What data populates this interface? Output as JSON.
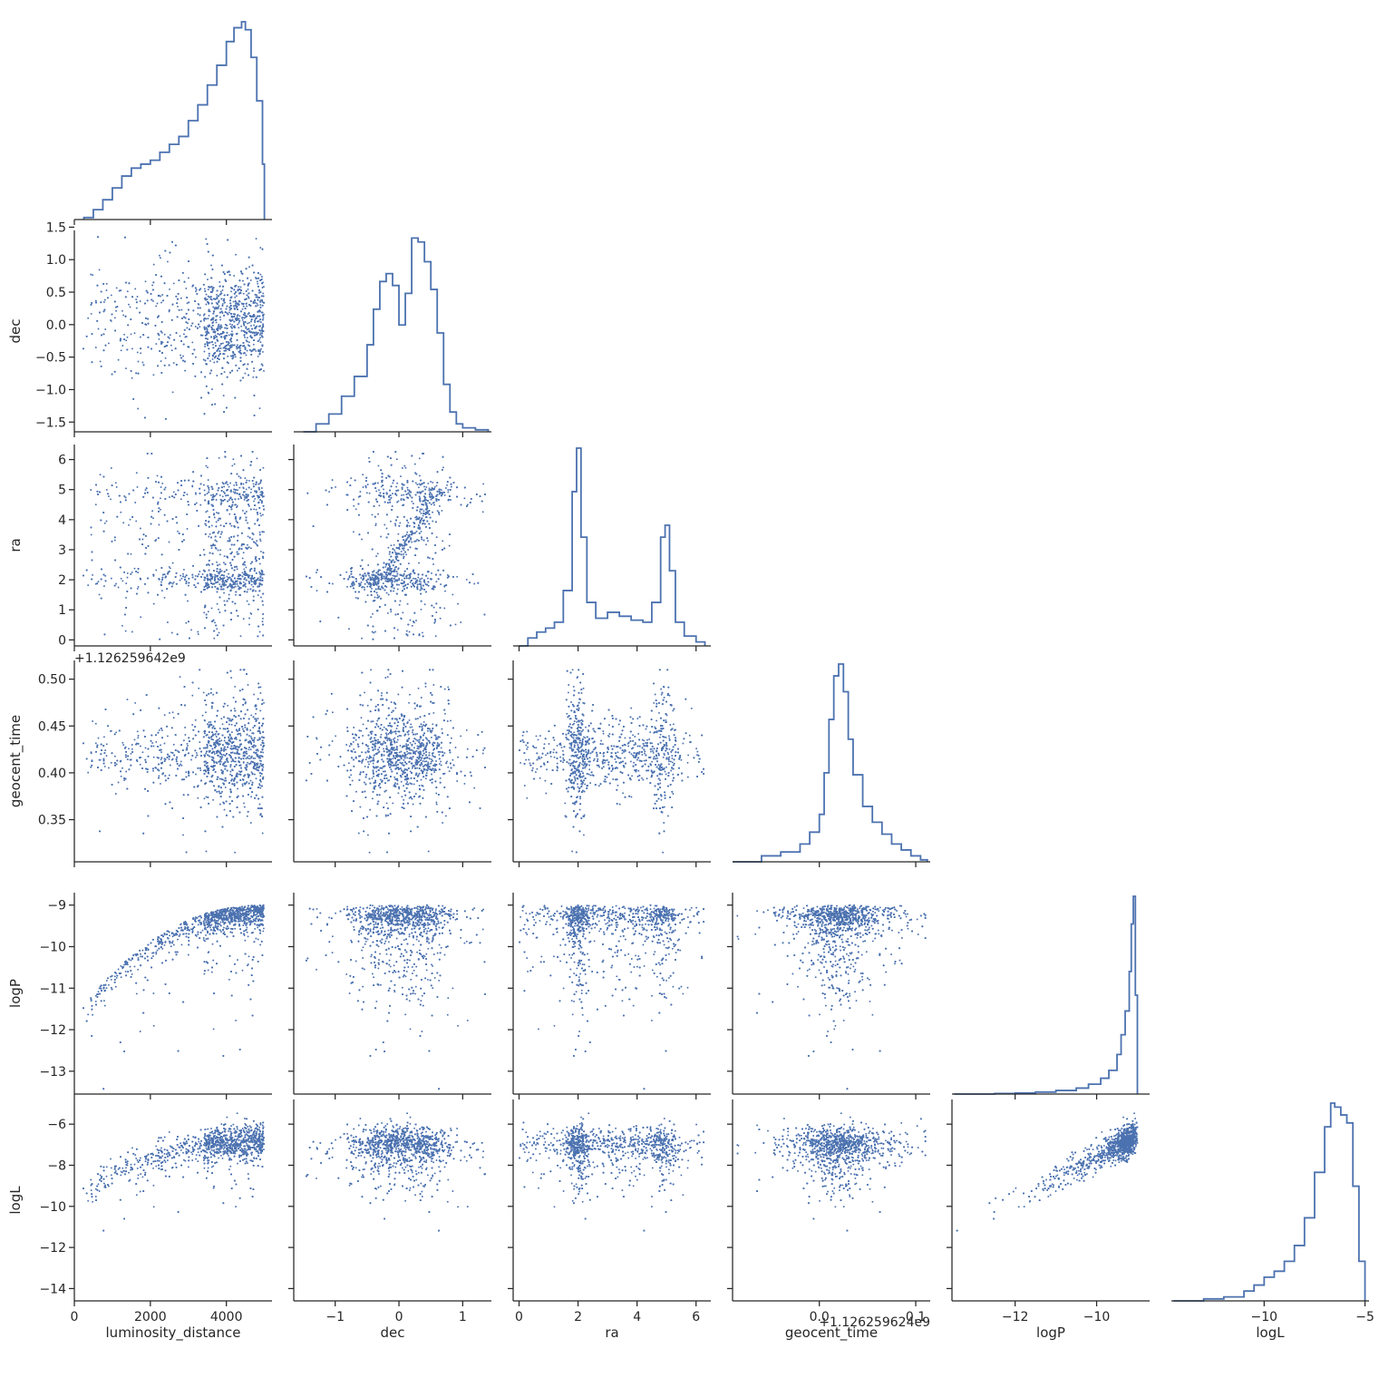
{
  "chart_data": {
    "type": "scatter",
    "layout": "corner pair plot",
    "variables": [
      "luminosity_distance",
      "dec",
      "ra",
      "geocent_time",
      "logP",
      "logL"
    ],
    "xlabels": [
      "luminosity_distance",
      "dec",
      "ra",
      "geocent_time",
      "logP",
      "logL"
    ],
    "ylabels": [
      "",
      "dec",
      "ra",
      "geocent_time",
      "logP",
      "logL"
    ],
    "offset_texts": {
      "geocent_time_y": "+1.126259642e9",
      "geocent_time_x": "+1.126259624e9"
    },
    "color": "#4c72b0",
    "ranges": {
      "luminosity_distance": [
        0,
        5200
      ],
      "dec": [
        -1.65,
        1.45
      ],
      "ra": [
        -0.2,
        6.5
      ],
      "geocent_time": [
        0.305,
        0.52
      ],
      "geocent_time_x": [
        -0.09,
        0.115
      ],
      "logP": [
        -13.55,
        -8.7
      ],
      "logL": [
        -14.6,
        -4.8
      ]
    },
    "ticks": {
      "luminosity_distance": {
        "values": [
          0,
          2000,
          4000
        ],
        "labels": [
          "0",
          "2000",
          "4000"
        ]
      },
      "dec": {
        "values": [
          -1,
          0,
          1
        ],
        "labels": [
          "−1",
          "0",
          "1"
        ]
      },
      "dec_y": {
        "values": [
          -1.5,
          -1.0,
          -0.5,
          0.0,
          0.5,
          1.0,
          1.5
        ],
        "labels": [
          "−1.5",
          "−1.0",
          "−0.5",
          "0.0",
          "0.5",
          "1.0",
          "1.5"
        ]
      },
      "ra": {
        "values": [
          0,
          2,
          4,
          6
        ],
        "labels": [
          "0",
          "2",
          "4",
          "6"
        ]
      },
      "ra_y": {
        "values": [
          0,
          1,
          2,
          3,
          4,
          5,
          6
        ],
        "labels": [
          "0",
          "1",
          "2",
          "3",
          "4",
          "5",
          "6"
        ]
      },
      "geocent_time_y": {
        "values": [
          0.35,
          0.4,
          0.45,
          0.5
        ],
        "labels": [
          "0.35",
          "0.40",
          "0.45",
          "0.50"
        ]
      },
      "geocent_time_x": {
        "values": [
          0.0,
          0.1
        ],
        "labels": [
          "0.0",
          "0.1"
        ]
      },
      "logP": {
        "values": [
          -12,
          -10
        ],
        "labels": [
          "−12",
          "−10"
        ]
      },
      "logP_y": {
        "values": [
          -13,
          -12,
          -11,
          -10,
          -9
        ],
        "labels": [
          "−13",
          "−12",
          "−11",
          "−10",
          "−9"
        ]
      },
      "logL": {
        "values": [
          -10,
          -5
        ],
        "labels": [
          "−10",
          "−5"
        ]
      },
      "logL_y": {
        "values": [
          -14,
          -12,
          -10,
          -8,
          -6
        ],
        "labels": [
          "−14",
          "−12",
          "−10",
          "−8",
          "−6"
        ]
      }
    },
    "histograms": {
      "luminosity_distance": {
        "x": [
          250,
          500,
          750,
          1000,
          1250,
          1500,
          1750,
          2000,
          2250,
          2500,
          2750,
          3000,
          3250,
          3500,
          3750,
          4000,
          4200,
          4400,
          4500,
          4650,
          4800,
          4950,
          5000
        ],
        "y": [
          0.01,
          0.05,
          0.1,
          0.16,
          0.22,
          0.26,
          0.28,
          0.3,
          0.34,
          0.38,
          0.42,
          0.5,
          0.58,
          0.68,
          0.78,
          0.9,
          0.97,
          1.0,
          0.96,
          0.82,
          0.6,
          0.28,
          0.0
        ]
      },
      "dec": {
        "x": [
          -1.5,
          -1.3,
          -1.1,
          -0.9,
          -0.7,
          -0.5,
          -0.4,
          -0.3,
          -0.2,
          -0.1,
          0.0,
          0.1,
          0.2,
          0.3,
          0.4,
          0.5,
          0.6,
          0.7,
          0.8,
          0.9,
          1.0,
          1.2,
          1.4
        ],
        "y": [
          0.0,
          0.04,
          0.09,
          0.18,
          0.28,
          0.44,
          0.62,
          0.76,
          0.8,
          0.74,
          0.54,
          0.7,
          0.98,
          0.96,
          0.86,
          0.72,
          0.5,
          0.24,
          0.1,
          0.04,
          0.02,
          0.01,
          0.0
        ]
      },
      "ra": {
        "x": [
          0.0,
          0.3,
          0.6,
          0.9,
          1.2,
          1.5,
          1.8,
          1.95,
          2.1,
          2.3,
          2.6,
          3.0,
          3.4,
          3.8,
          4.2,
          4.5,
          4.8,
          4.95,
          5.1,
          5.3,
          5.6,
          6.0,
          6.3
        ],
        "y": [
          0.0,
          0.04,
          0.07,
          0.09,
          0.12,
          0.28,
          0.78,
          1.0,
          0.55,
          0.22,
          0.14,
          0.17,
          0.15,
          0.13,
          0.12,
          0.22,
          0.55,
          0.61,
          0.38,
          0.12,
          0.05,
          0.02,
          0.0
        ]
      },
      "geocent_time_x": {
        "x": [
          -0.09,
          -0.06,
          -0.04,
          -0.02,
          -0.01,
          0.0,
          0.005,
          0.01,
          0.015,
          0.02,
          0.025,
          0.03,
          0.035,
          0.045,
          0.055,
          0.065,
          0.075,
          0.085,
          0.095,
          0.105,
          0.112
        ],
        "y": [
          0.0,
          0.03,
          0.05,
          0.09,
          0.15,
          0.24,
          0.45,
          0.72,
          0.94,
          1.0,
          0.86,
          0.62,
          0.44,
          0.28,
          0.2,
          0.14,
          0.09,
          0.06,
          0.03,
          0.01,
          0.0
        ]
      },
      "logP": {
        "x": [
          -13.5,
          -13.0,
          -12.5,
          -12.0,
          -11.5,
          -11.0,
          -10.5,
          -10.2,
          -9.9,
          -9.7,
          -9.5,
          -9.4,
          -9.3,
          -9.2,
          -9.15,
          -9.1,
          -9.05,
          -9.0
        ],
        "y": [
          0.0,
          0.0,
          0.003,
          0.005,
          0.01,
          0.018,
          0.03,
          0.05,
          0.08,
          0.12,
          0.2,
          0.3,
          0.42,
          0.62,
          0.86,
          1.0,
          0.5,
          0.0
        ]
      },
      "logL": {
        "x": [
          -14.5,
          -13.0,
          -12.0,
          -11.0,
          -10.5,
          -10.0,
          -9.5,
          -9.0,
          -8.5,
          -8.0,
          -7.5,
          -7.0,
          -6.7,
          -6.5,
          -6.2,
          -5.9,
          -5.6,
          -5.3,
          -5.0
        ],
        "y": [
          0.0,
          0.01,
          0.02,
          0.05,
          0.08,
          0.12,
          0.15,
          0.2,
          0.28,
          0.42,
          0.65,
          0.88,
          1.0,
          0.98,
          0.94,
          0.9,
          0.58,
          0.2,
          0.0
        ]
      }
    }
  }
}
